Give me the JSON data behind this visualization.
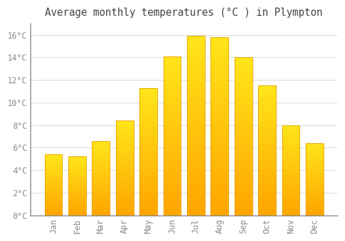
{
  "title": "Average monthly temperatures (°C ) in Plympton",
  "months": [
    "Jan",
    "Feb",
    "Mar",
    "Apr",
    "May",
    "Jun",
    "Jul",
    "Aug",
    "Sep",
    "Oct",
    "Nov",
    "Dec"
  ],
  "values": [
    5.4,
    5.2,
    6.6,
    8.4,
    11.3,
    14.1,
    15.9,
    15.8,
    14.0,
    11.5,
    8.0,
    6.4
  ],
  "bar_color_top": "#FFD700",
  "bar_color_bottom": "#FFA500",
  "bar_edge_color": "#E8A000",
  "background_color": "#FFFFFF",
  "grid_color": "#DDDDDD",
  "ylim": [
    0,
    17
  ],
  "yticks": [
    0,
    2,
    4,
    6,
    8,
    10,
    12,
    14,
    16
  ],
  "tick_label_color": "#888888",
  "title_color": "#444444",
  "title_fontsize": 10.5,
  "tick_fontsize": 8.5,
  "font_family": "monospace"
}
